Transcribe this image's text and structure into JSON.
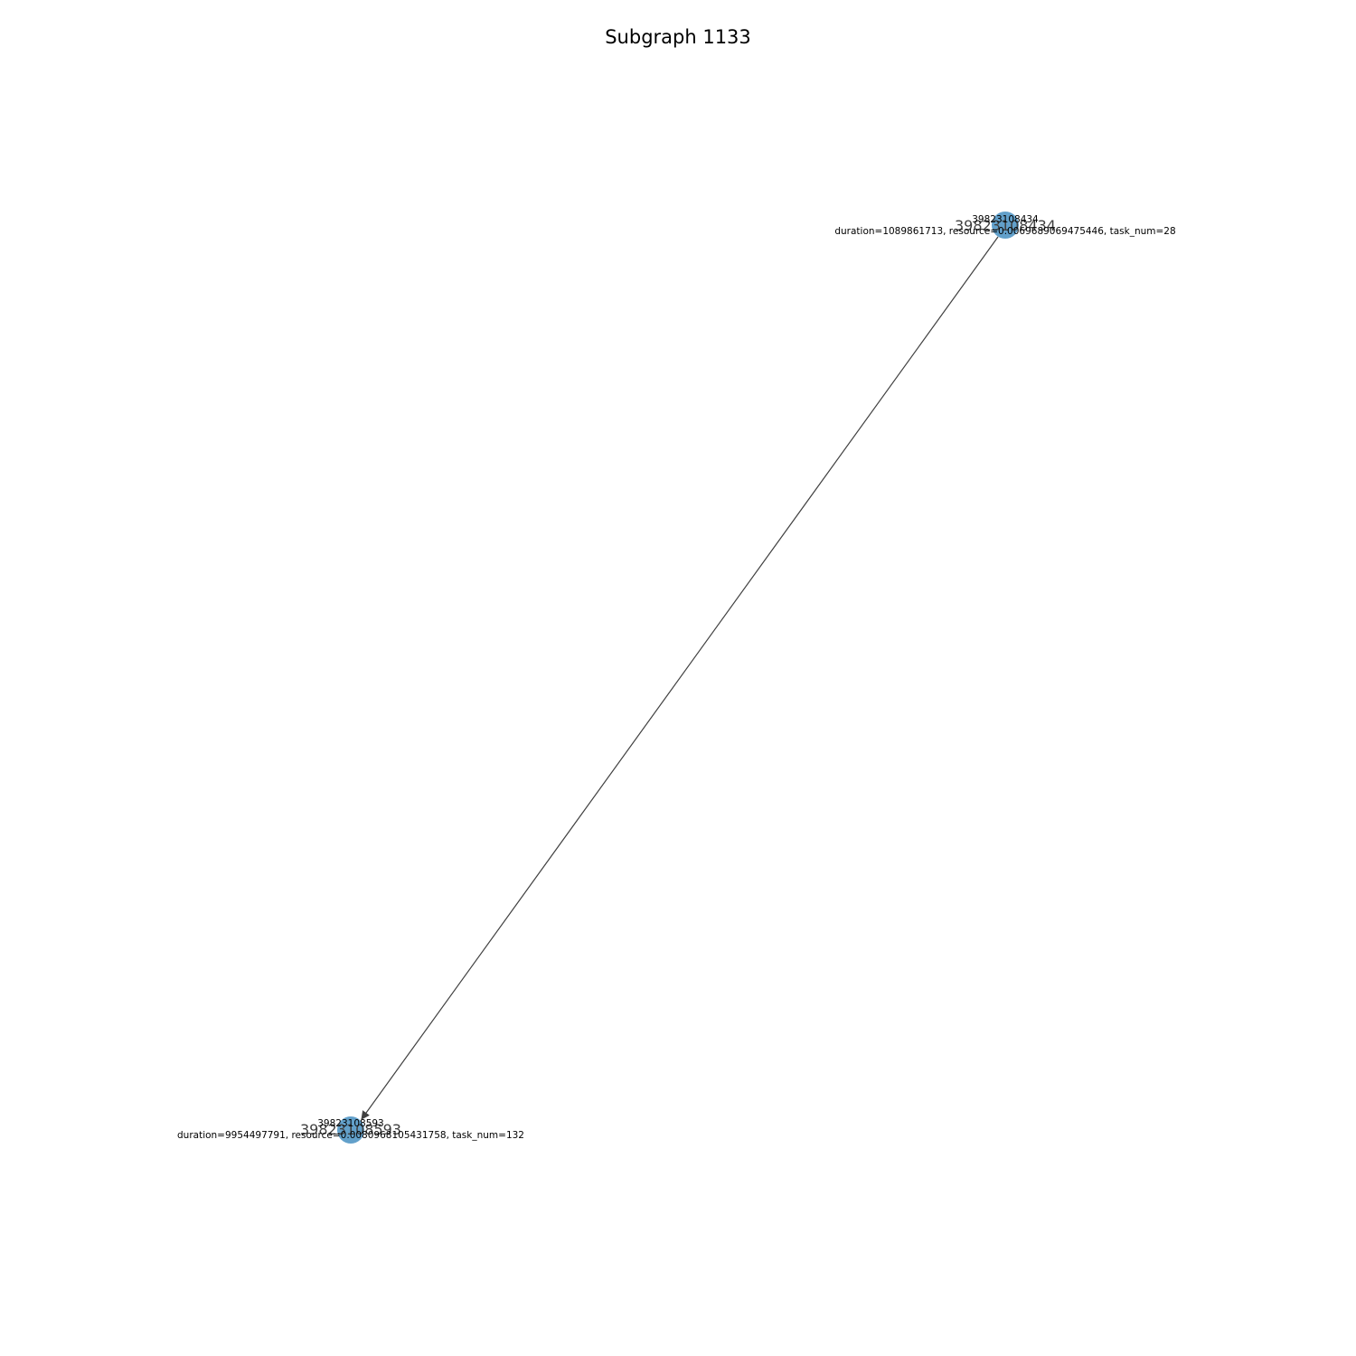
{
  "title": "Subgraph 1133",
  "colors": {
    "node": "#1f77b4",
    "edge": "#404040"
  },
  "nodes": [
    {
      "id": "39823108434",
      "label": "39823108434",
      "label_parts": [
        "39823108434",
        "duration=1089861713, resource=0.0069689069475446, task_num=28"
      ]
    },
    {
      "id": "39823108593",
      "label": "39823108593",
      "label_parts": [
        "39823108593",
        "duration=9954497791, resource=0.0080968105431758, task_num=132"
      ]
    }
  ],
  "edges": [
    {
      "source": "39823108434",
      "target": "39823108593",
      "directed": true
    }
  ]
}
